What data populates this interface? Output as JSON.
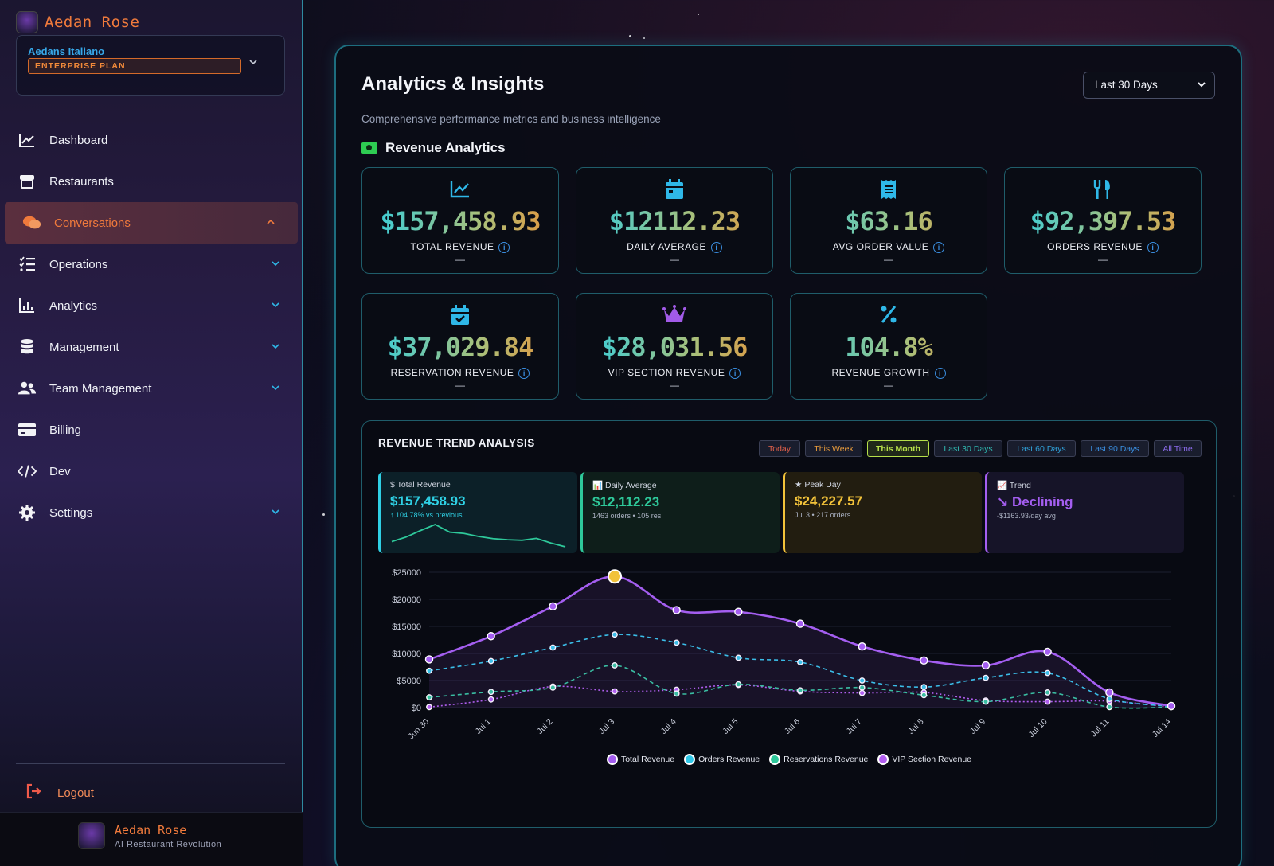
{
  "sidebar": {
    "brand": "Aedan Rose",
    "org_name": "Aedans Italiano",
    "plan": "ENTERPRISE PLAN",
    "items": [
      {
        "label": "Dashboard",
        "icon": "chart-line-icon"
      },
      {
        "label": "Restaurants",
        "icon": "store-icon"
      },
      {
        "label": "Conversations",
        "icon": "chat-bubbles-icon",
        "active": true
      },
      {
        "label": "Operations",
        "icon": "list-check-icon"
      },
      {
        "label": "Analytics",
        "icon": "bar-chart-icon"
      },
      {
        "label": "Management",
        "icon": "database-icon"
      },
      {
        "label": "Team Management",
        "icon": "users-icon"
      },
      {
        "label": "Billing",
        "icon": "credit-card-icon"
      },
      {
        "label": "Dev",
        "icon": "code-icon"
      },
      {
        "label": "Settings",
        "icon": "gear-icon"
      }
    ],
    "logout": "Logout",
    "footer_name": "Aedan Rose",
    "footer_tagline": "AI Restaurant Revolution"
  },
  "header": {
    "title": "Analytics & Insights",
    "subtitle": "Comprehensive performance metrics and business intelligence",
    "range_selected": "Last 30 Days",
    "section_title": "Revenue Analytics"
  },
  "kpis": [
    {
      "value": "$157,458.93",
      "label": "TOTAL REVENUE",
      "dash": "—",
      "icon": "chart-line-icon",
      "icon_color": "#2fb8e8"
    },
    {
      "value": "$12112.23",
      "label": "DAILY AVERAGE",
      "dash": "—",
      "icon": "calendar-icon",
      "icon_color": "#2fb8e8"
    },
    {
      "value": "$63.16",
      "label": "AVG ORDER VALUE",
      "dash": "—",
      "icon": "receipt-icon",
      "icon_color": "#2fb8e8"
    },
    {
      "value": "$92,397.53",
      "label": "ORDERS REVENUE",
      "dash": "—",
      "icon": "utensils-icon",
      "icon_color": "#2fb8e8"
    },
    {
      "value": "$37,029.84",
      "label": "RESERVATION REVENUE",
      "dash": "—",
      "icon": "calendar-check-icon",
      "icon_color": "#2fb8e8"
    },
    {
      "value": "$28,031.56",
      "label": "VIP SECTION REVENUE",
      "dash": "—",
      "icon": "crown-icon",
      "icon_color": "#a25be8"
    },
    {
      "value": "104.8%",
      "label": "REVENUE GROWTH",
      "dash": "—",
      "icon": "percent-icon",
      "icon_color": "#2fb8e8"
    }
  ],
  "trend": {
    "title": "REVENUE TREND ANALYSIS",
    "filters": [
      {
        "label": "Today",
        "color": "#e0604a"
      },
      {
        "label": "This Week",
        "color": "#e69a3c"
      },
      {
        "label": "This Month",
        "color": "#b6e04a",
        "active": true
      },
      {
        "label": "Last 30 Days",
        "color": "#2fb8b0"
      },
      {
        "label": "Last 60 Days",
        "color": "#2fa0d8"
      },
      {
        "label": "Last 90 Days",
        "color": "#3a8ee0"
      },
      {
        "label": "All Time",
        "color": "#8a6ae8"
      }
    ],
    "cards": [
      {
        "label": "$ Total Revenue",
        "value": "$157,458.93",
        "sub": "↑ 104.78% vs previous",
        "color": "#2fd0e4",
        "bg": "#0c2028",
        "border": "#2fd0e4"
      },
      {
        "label": "📊 Daily Average",
        "value": "$12,112.23",
        "sub": "1463 orders • 105 res",
        "color": "#2ec89a",
        "bg": "#0e1e1a",
        "border": "#2ec89a"
      },
      {
        "label": "★ Peak Day",
        "value": "$24,227.57",
        "sub": "Jul 3 • 217 orders",
        "color": "#f2c23a",
        "bg": "#221d10",
        "border": "#f2c23a"
      },
      {
        "label": "📈 Trend",
        "value": "↘ Declining",
        "sub": "-$1163.93/day avg",
        "color": "#a45ef0",
        "bg": "#161428",
        "border": "#a45ef0"
      }
    ],
    "legend": [
      "Total Revenue",
      "Orders Revenue",
      "Reservations Revenue",
      "VIP Section Revenue"
    ]
  },
  "chart_data": {
    "type": "line",
    "x": [
      "Jun 30",
      "Jul 1",
      "Jul 2",
      "Jul 3",
      "Jul 4",
      "Jul 5",
      "Jul 6",
      "Jul 7",
      "Jul 8",
      "Jul 9",
      "Jul 10",
      "Jul 11",
      "Jul 14"
    ],
    "ylim": [
      0,
      25000
    ],
    "yticks": [
      "$0",
      "$5000",
      "$10000",
      "$15000",
      "$20000",
      "$25000"
    ],
    "series": [
      {
        "name": "Total Revenue",
        "color": "#a45ef0",
        "dash": "solid",
        "values": [
          8900,
          13200,
          18700,
          24227,
          18000,
          17700,
          15500,
          11300,
          8700,
          7800,
          10300,
          2800,
          300
        ]
      },
      {
        "name": "Orders Revenue",
        "color": "#2fc8e8",
        "dash": "dashed",
        "values": [
          6800,
          8600,
          11100,
          13500,
          12000,
          9200,
          8400,
          5000,
          3800,
          5500,
          6400,
          1600,
          200
        ]
      },
      {
        "name": "Reservations Revenue",
        "color": "#2ec89a",
        "dash": "dashed",
        "values": [
          1900,
          2900,
          3700,
          7800,
          2600,
          4300,
          3200,
          3700,
          2300,
          1100,
          2800,
          100,
          100
        ]
      },
      {
        "name": "VIP Section Revenue",
        "color": "#b25ef0",
        "dash": "dotted",
        "values": [
          100,
          1500,
          3900,
          3000,
          3300,
          4200,
          3000,
          2700,
          2800,
          1300,
          1100,
          1200,
          100
        ]
      }
    ],
    "peak_index": 3
  },
  "mini_spark": [
    4.5,
    6.2,
    8.6,
    10.8,
    8.0,
    7.5,
    6.4,
    5.6,
    5.2,
    5.0,
    5.7,
    4.0,
    2.6
  ]
}
